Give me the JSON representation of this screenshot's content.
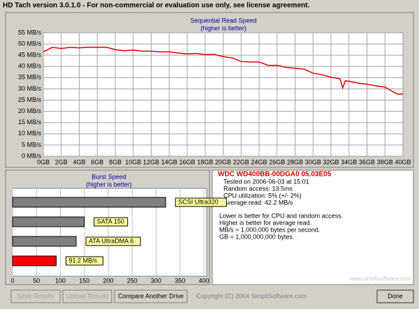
{
  "window": {
    "title": "HD Tach version 3.0.1.0  - For non-commercial or evaluation use only, see license agreement.",
    "buttons": {
      "save": "Save Results",
      "upload": "Upload Results",
      "compare": "Compare Another Drive",
      "done": "Done"
    },
    "copyright": "Copyright (C) 2004 SimpliSoftware.com",
    "watermark": "www.simplisoftware.com"
  },
  "info": {
    "drive": "WDC WD400BB-00DGA0 05.03E05",
    "details": [
      "Tested on 2006-06-03 at 15:01",
      "Random access: 13.5ms",
      "CPU utilization: 5% (+/- 2%)",
      "Average read: 42.2 MB/s"
    ],
    "notes": [
      "Lower is better for CPU and random access.",
      "Higher is better for average read.",
      "MB/s = 1,000,000 bytes per second.",
      "GB = 1,000,000,000 bytes."
    ]
  },
  "chart_data": [
    {
      "type": "line",
      "title": "Sequential Read Speed",
      "subtitle": "(higher is better)",
      "color": "#e00000",
      "grid": true,
      "x": [
        0,
        1,
        2,
        3,
        4,
        5,
        6,
        7,
        8,
        9,
        10,
        11,
        12,
        13,
        14,
        15,
        16,
        17,
        18,
        19,
        20,
        21,
        22,
        23,
        24,
        25,
        26,
        27,
        28,
        29,
        30,
        31,
        32,
        33,
        33.3,
        33.6,
        34,
        35,
        36,
        37,
        38,
        39,
        39.5,
        40
      ],
      "values": [
        46.5,
        48.5,
        48,
        48.5,
        48.3,
        48.6,
        48.5,
        48.6,
        47.5,
        47,
        47.3,
        46.8,
        46.8,
        46.5,
        46.5,
        46,
        45.6,
        45.8,
        45.3,
        45.4,
        44.4,
        43.8,
        42.2,
        42,
        42,
        40.5,
        40.5,
        39.6,
        39.2,
        38.8,
        37,
        36.3,
        35.2,
        34.5,
        30.5,
        33.6,
        33.4,
        32.6,
        32.1,
        31.4,
        30.8,
        28.5,
        27.6,
        27.8
      ],
      "xlim": [
        0,
        40
      ],
      "xticks": [
        {
          "value": 0,
          "label": "0GB"
        },
        {
          "value": 2,
          "label": "2GB"
        },
        {
          "value": 4,
          "label": "4GB"
        },
        {
          "value": 6,
          "label": "6GB"
        },
        {
          "value": 8,
          "label": "8GB"
        },
        {
          "value": 10,
          "label": "10GB"
        },
        {
          "value": 12,
          "label": "12GB"
        },
        {
          "value": 14,
          "label": "14GB"
        },
        {
          "value": 16,
          "label": "16GB"
        },
        {
          "value": 18,
          "label": "18GB"
        },
        {
          "value": 20,
          "label": "20GB"
        },
        {
          "value": 22,
          "label": "22GB"
        },
        {
          "value": 24,
          "label": "24GB"
        },
        {
          "value": 26,
          "label": "26GB"
        },
        {
          "value": 28,
          "label": "28GB"
        },
        {
          "value": 30,
          "label": "30GB"
        },
        {
          "value": 32,
          "label": "32GB"
        },
        {
          "value": 34,
          "label": "34GB"
        },
        {
          "value": 36,
          "label": "36GB"
        },
        {
          "value": 38,
          "label": "38GB"
        },
        {
          "value": 40,
          "label": "40GB"
        }
      ],
      "ylim": [
        0,
        55
      ],
      "yticks": [
        {
          "value": 0,
          "label": "0 MB/s"
        },
        {
          "value": 5,
          "label": "5 MB/s"
        },
        {
          "value": 10,
          "label": "10 MB/s"
        },
        {
          "value": 15,
          "label": "15 MB/s"
        },
        {
          "value": 20,
          "label": "20 MB/s"
        },
        {
          "value": 25,
          "label": "25 MB/s"
        },
        {
          "value": 30,
          "label": "30 MB/s"
        },
        {
          "value": 35,
          "label": "35 MB/s"
        },
        {
          "value": 40,
          "label": "40 MB/s"
        },
        {
          "value": 45,
          "label": "45 MB/s"
        },
        {
          "value": 50,
          "label": "50 MB/s"
        },
        {
          "value": 55,
          "label": "55 MB/s"
        }
      ]
    },
    {
      "type": "hbar",
      "title": "Burst Speed",
      "subtitle": "(higher is better)",
      "grid": true,
      "categories": [
        "SCSI Ultra320",
        "SATA 150",
        "ATA UltraDMA 6",
        null
      ],
      "values": [
        320,
        150,
        133,
        91.2
      ],
      "value_labels": [
        null,
        null,
        null,
        "91.2 MB/s"
      ],
      "colors": [
        "#808080",
        "#808080",
        "#808080",
        "#ff0000"
      ],
      "xlim": [
        0,
        400
      ],
      "xticks": [
        0,
        50,
        100,
        150,
        200,
        250,
        300,
        350,
        400
      ]
    }
  ]
}
